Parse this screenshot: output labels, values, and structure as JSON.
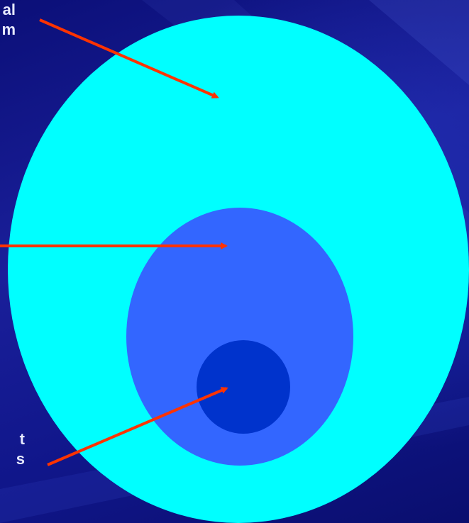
{
  "labels": {
    "top_line1": "al",
    "top_line2": "m",
    "bottom_line1": "t",
    "bottom_line2": "s"
  },
  "colors": {
    "background": "#0f1487",
    "outer_circle": "#00ffff",
    "middle_circle": "#3366ff",
    "inner_circle": "#0033cc",
    "arrow": "#ff3300"
  }
}
